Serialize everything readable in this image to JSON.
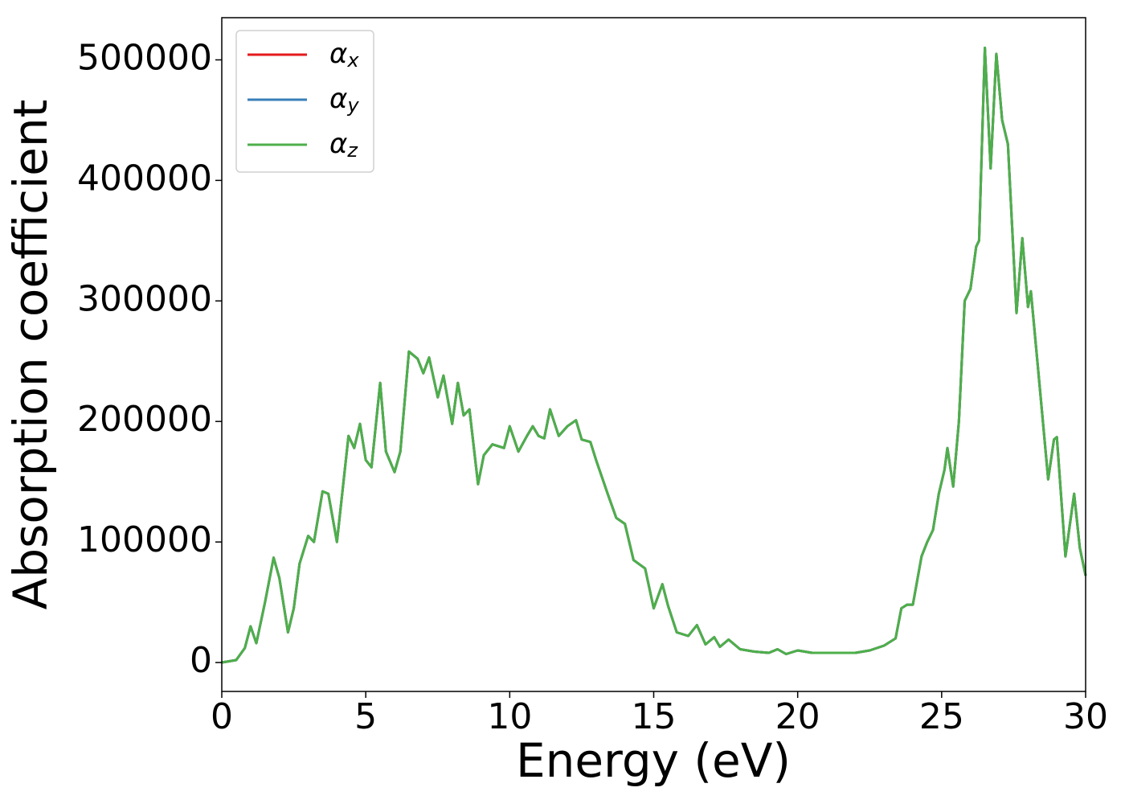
{
  "chart_data": {
    "type": "line",
    "xlabel": "Energy (eV)",
    "ylabel": "Absorption coefficient",
    "x": [
      0,
      0.5,
      0.8,
      1.0,
      1.2,
      1.5,
      1.8,
      2.0,
      2.3,
      2.5,
      2.7,
      3.0,
      3.2,
      3.5,
      3.7,
      4.0,
      4.4,
      4.6,
      4.8,
      5.0,
      5.2,
      5.5,
      5.7,
      6.0,
      6.2,
      6.5,
      6.8,
      7.0,
      7.2,
      7.5,
      7.7,
      8.0,
      8.2,
      8.4,
      8.6,
      8.9,
      9.1,
      9.4,
      9.8,
      10.0,
      10.3,
      10.6,
      10.8,
      11.0,
      11.2,
      11.4,
      11.7,
      12.0,
      12.3,
      12.5,
      12.8,
      13.0,
      13.4,
      13.7,
      14.0,
      14.3,
      14.7,
      15.0,
      15.3,
      15.5,
      15.8,
      16.2,
      16.5,
      16.8,
      17.1,
      17.3,
      17.6,
      18.0,
      18.5,
      19.0,
      19.3,
      19.6,
      20.0,
      20.5,
      21.0,
      21.5,
      22.0,
      22.5,
      23.0,
      23.4,
      23.6,
      23.8,
      24.0,
      24.3,
      24.5,
      24.7,
      24.9,
      25.1,
      25.2,
      25.4,
      25.6,
      25.8,
      26.0,
      26.2,
      26.3,
      26.5,
      26.7,
      26.9,
      27.1,
      27.3,
      27.6,
      27.8,
      28.0,
      28.1,
      28.4,
      28.7,
      28.9,
      29.0,
      29.3,
      29.6,
      29.8,
      30.0
    ],
    "series": [
      {
        "name": "αx",
        "color": "#e41a1c",
        "values": [
          0,
          2000,
          12000,
          30000,
          16000,
          50000,
          87000,
          70000,
          25000,
          45000,
          82000,
          105000,
          100000,
          142000,
          140000,
          100000,
          188000,
          178000,
          198000,
          168000,
          162000,
          232000,
          175000,
          158000,
          175000,
          258000,
          252000,
          240000,
          253000,
          220000,
          238000,
          198000,
          232000,
          205000,
          210000,
          148000,
          172000,
          181000,
          178000,
          196000,
          175000,
          188000,
          196000,
          188000,
          186000,
          210000,
          188000,
          196000,
          201000,
          185000,
          183000,
          168000,
          140000,
          120000,
          115000,
          85000,
          78000,
          45000,
          65000,
          47000,
          25000,
          22000,
          31000,
          15000,
          21000,
          13000,
          19000,
          11000,
          9000,
          8000,
          11000,
          7000,
          10000,
          8000,
          8000,
          8000,
          8000,
          10000,
          14000,
          20000,
          45000,
          48000,
          48000,
          88000,
          100000,
          110000,
          140000,
          160000,
          178000,
          146000,
          200000,
          300000,
          310000,
          345000,
          350000,
          510000,
          410000,
          505000,
          450000,
          430000,
          290000,
          352000,
          295000,
          308000,
          230000,
          152000,
          185000,
          187000,
          88000,
          140000,
          95000,
          72000
        ]
      },
      {
        "name": "αy",
        "color": "#377eb8",
        "values": [
          0,
          2000,
          12000,
          30000,
          16000,
          50000,
          87000,
          70000,
          25000,
          45000,
          82000,
          105000,
          100000,
          142000,
          140000,
          100000,
          188000,
          178000,
          198000,
          168000,
          162000,
          232000,
          175000,
          158000,
          175000,
          258000,
          252000,
          240000,
          253000,
          220000,
          238000,
          198000,
          232000,
          205000,
          210000,
          148000,
          172000,
          181000,
          178000,
          196000,
          175000,
          188000,
          196000,
          188000,
          186000,
          210000,
          188000,
          196000,
          201000,
          185000,
          183000,
          168000,
          140000,
          120000,
          115000,
          85000,
          78000,
          45000,
          65000,
          47000,
          25000,
          22000,
          31000,
          15000,
          21000,
          13000,
          19000,
          11000,
          9000,
          8000,
          11000,
          7000,
          10000,
          8000,
          8000,
          8000,
          8000,
          10000,
          14000,
          20000,
          45000,
          48000,
          48000,
          88000,
          100000,
          110000,
          140000,
          160000,
          178000,
          146000,
          200000,
          300000,
          310000,
          345000,
          350000,
          510000,
          410000,
          505000,
          450000,
          430000,
          290000,
          352000,
          295000,
          308000,
          230000,
          152000,
          185000,
          187000,
          88000,
          140000,
          95000,
          72000
        ]
      },
      {
        "name": "αz",
        "color": "#4daf4a",
        "values": [
          0,
          2000,
          12000,
          30000,
          16000,
          50000,
          87000,
          70000,
          25000,
          45000,
          82000,
          105000,
          100000,
          142000,
          140000,
          100000,
          188000,
          178000,
          198000,
          168000,
          162000,
          232000,
          175000,
          158000,
          175000,
          258000,
          252000,
          240000,
          253000,
          220000,
          238000,
          198000,
          232000,
          205000,
          210000,
          148000,
          172000,
          181000,
          178000,
          196000,
          175000,
          188000,
          196000,
          188000,
          186000,
          210000,
          188000,
          196000,
          201000,
          185000,
          183000,
          168000,
          140000,
          120000,
          115000,
          85000,
          78000,
          45000,
          65000,
          47000,
          25000,
          22000,
          31000,
          15000,
          21000,
          13000,
          19000,
          11000,
          9000,
          8000,
          11000,
          7000,
          10000,
          8000,
          8000,
          8000,
          8000,
          10000,
          14000,
          20000,
          45000,
          48000,
          48000,
          88000,
          100000,
          110000,
          140000,
          160000,
          178000,
          146000,
          200000,
          300000,
          310000,
          345000,
          350000,
          510000,
          410000,
          505000,
          450000,
          430000,
          290000,
          352000,
          295000,
          308000,
          230000,
          152000,
          185000,
          187000,
          88000,
          140000,
          95000,
          72000
        ]
      }
    ],
    "xlim": [
      0,
      30
    ],
    "xticks": [
      0,
      5,
      10,
      15,
      20,
      25,
      30
    ],
    "ylim": [
      -24000,
      535000
    ],
    "yticks": [
      0,
      100000,
      200000,
      300000,
      400000,
      500000
    ],
    "legend": "upper left"
  }
}
